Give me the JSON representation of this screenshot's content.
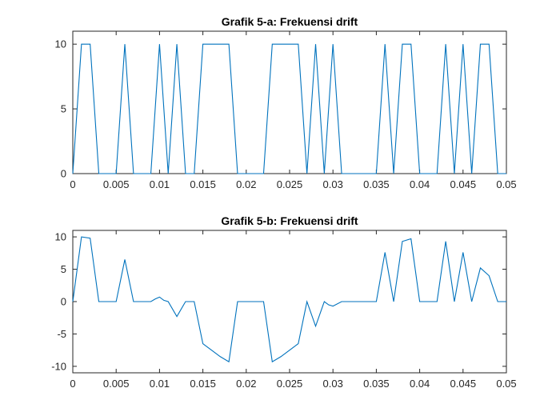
{
  "chart_data": [
    {
      "type": "line",
      "title": "Grafik 5-a: Frekuensi drift",
      "xlabel": "",
      "ylabel": "",
      "xlim": [
        0,
        0.05
      ],
      "ylim": [
        0,
        11
      ],
      "x_ticks": [
        0,
        0.005,
        0.01,
        0.015,
        0.02,
        0.025,
        0.03,
        0.035,
        0.04,
        0.045,
        0.05
      ],
      "x_tick_labels": [
        "0",
        "0.005",
        "0.01",
        "0.015",
        "0.02",
        "0.025",
        "0.03",
        "0.035",
        "0.04",
        "0.045",
        "0.05"
      ],
      "y_ticks": [
        0,
        5,
        10
      ],
      "y_tick_labels": [
        "0",
        "5",
        "10"
      ],
      "grid": false,
      "series": [
        {
          "color": "#0072BD",
          "x": [
            0,
            0.001,
            0.002,
            0.003,
            0.004,
            0.005,
            0.006,
            0.007,
            0.008,
            0.009,
            0.01,
            0.011,
            0.012,
            0.013,
            0.014,
            0.015,
            0.016,
            0.017,
            0.018,
            0.019,
            0.02,
            0.021,
            0.022,
            0.023,
            0.024,
            0.025,
            0.026,
            0.027,
            0.028,
            0.029,
            0.03,
            0.031,
            0.032,
            0.033,
            0.034,
            0.035,
            0.036,
            0.037,
            0.038,
            0.039,
            0.04,
            0.041,
            0.042,
            0.043,
            0.044,
            0.045,
            0.046,
            0.047,
            0.048,
            0.049,
            0.05
          ],
          "y": [
            0,
            10,
            10,
            0,
            0,
            0,
            10,
            0,
            0,
            0,
            10,
            0,
            10,
            0,
            0,
            10,
            10,
            10,
            10,
            0,
            0,
            0,
            0,
            10,
            10,
            10,
            10,
            0,
            10,
            0,
            10,
            0,
            0,
            0,
            0,
            0,
            10,
            0,
            10,
            10,
            0,
            0,
            0,
            10,
            0,
            10,
            0,
            10,
            10,
            0,
            0
          ]
        }
      ]
    },
    {
      "type": "line",
      "title": "Grafik 5-b: Frekuensi drift",
      "xlabel": "",
      "ylabel": "",
      "xlim": [
        0,
        0.05
      ],
      "ylim": [
        -11,
        11
      ],
      "x_ticks": [
        0,
        0.005,
        0.01,
        0.015,
        0.02,
        0.025,
        0.03,
        0.035,
        0.04,
        0.045,
        0.05
      ],
      "x_tick_labels": [
        "0",
        "0.005",
        "0.01",
        "0.015",
        "0.02",
        "0.025",
        "0.03",
        "0.035",
        "0.04",
        "0.045",
        "0.05"
      ],
      "y_ticks": [
        -10,
        -5,
        0,
        5,
        10
      ],
      "y_tick_labels": [
        "-10",
        "-5",
        "0",
        "5",
        "10"
      ],
      "grid": false,
      "series": [
        {
          "color": "#0072BD",
          "x": [
            0,
            0.001,
            0.002,
            0.003,
            0.004,
            0.005,
            0.006,
            0.007,
            0.008,
            0.009,
            0.0095,
            0.01,
            0.0105,
            0.011,
            0.012,
            0.013,
            0.014,
            0.015,
            0.016,
            0.017,
            0.018,
            0.019,
            0.02,
            0.021,
            0.022,
            0.023,
            0.024,
            0.025,
            0.026,
            0.027,
            0.028,
            0.029,
            0.0295,
            0.03,
            0.031,
            0.032,
            0.033,
            0.034,
            0.035,
            0.036,
            0.037,
            0.038,
            0.039,
            0.04,
            0.041,
            0.042,
            0.043,
            0.044,
            0.045,
            0.046,
            0.047,
            0.048,
            0.049,
            0.05
          ],
          "y": [
            0,
            10,
            9.8,
            0,
            0,
            0,
            6.5,
            0,
            0,
            0,
            0.4,
            0.7,
            0.2,
            0,
            -2.3,
            0,
            0,
            -6.5,
            -7.5,
            -8.5,
            -9.3,
            0,
            0,
            0,
            0,
            -9.3,
            -8.5,
            -7.5,
            -6.5,
            0,
            -3.8,
            0,
            -0.5,
            -0.7,
            0,
            0,
            0,
            0,
            0,
            7.6,
            0,
            9.3,
            9.7,
            0,
            0,
            0,
            9.3,
            0,
            7.6,
            0,
            5.2,
            4,
            0,
            0
          ]
        }
      ]
    }
  ]
}
